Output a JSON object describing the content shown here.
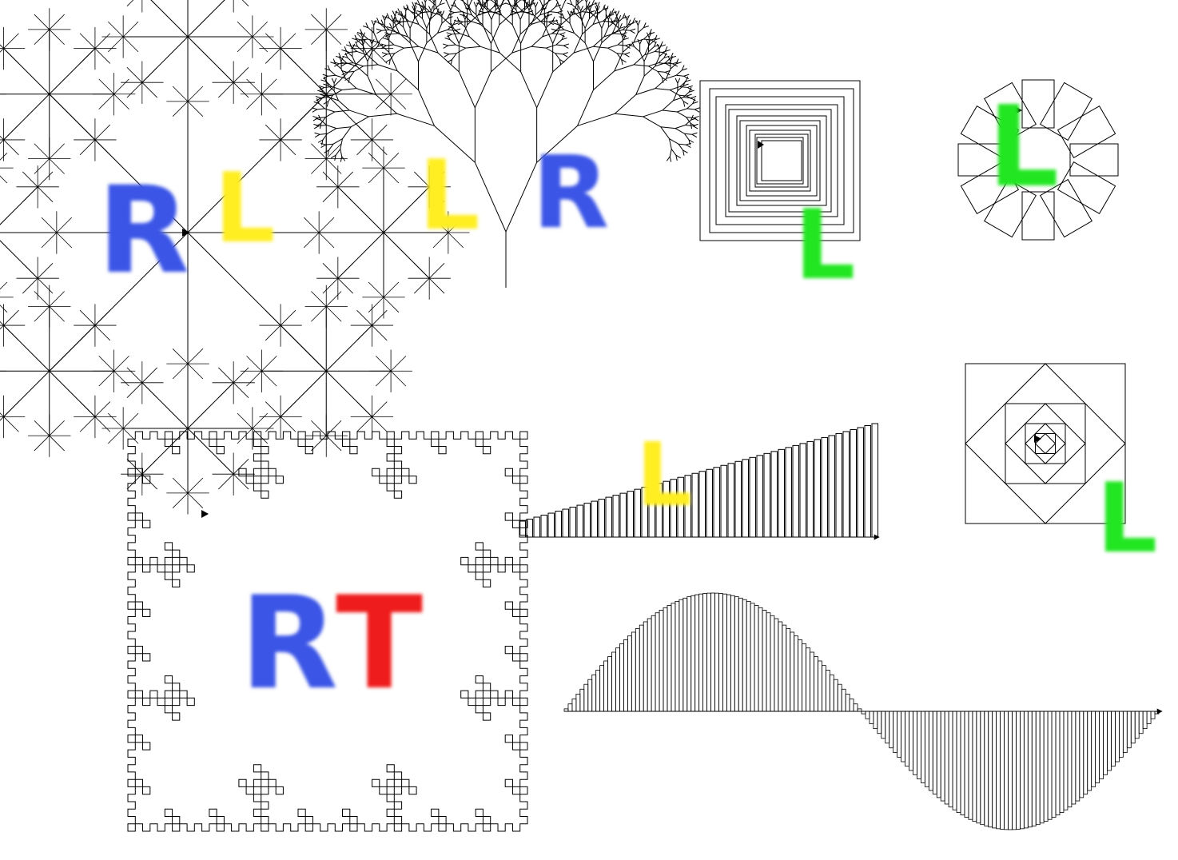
{
  "colors": {
    "ink": "#000000",
    "background": "#ffffff",
    "blue": "#3a55e6",
    "yellow": "#ffee22",
    "green": "#22e622",
    "red": "#ee1c1c"
  },
  "drawings": [
    "asterisk-fractal",
    "fractal-tree",
    "square-spiral",
    "ring-of-squares",
    "koch-snowflake",
    "bar-staircase",
    "nested-diamond-squares",
    "sine-wave-bars"
  ],
  "marks": {
    "asterisk_R": "R",
    "asterisk_L": "L",
    "tree_L": "L",
    "tree_R": "R",
    "spiral_L": "L",
    "ring_L": "L",
    "bars_L": "L",
    "diamond_L": "L",
    "koch_R": "R",
    "koch_T": "T"
  }
}
